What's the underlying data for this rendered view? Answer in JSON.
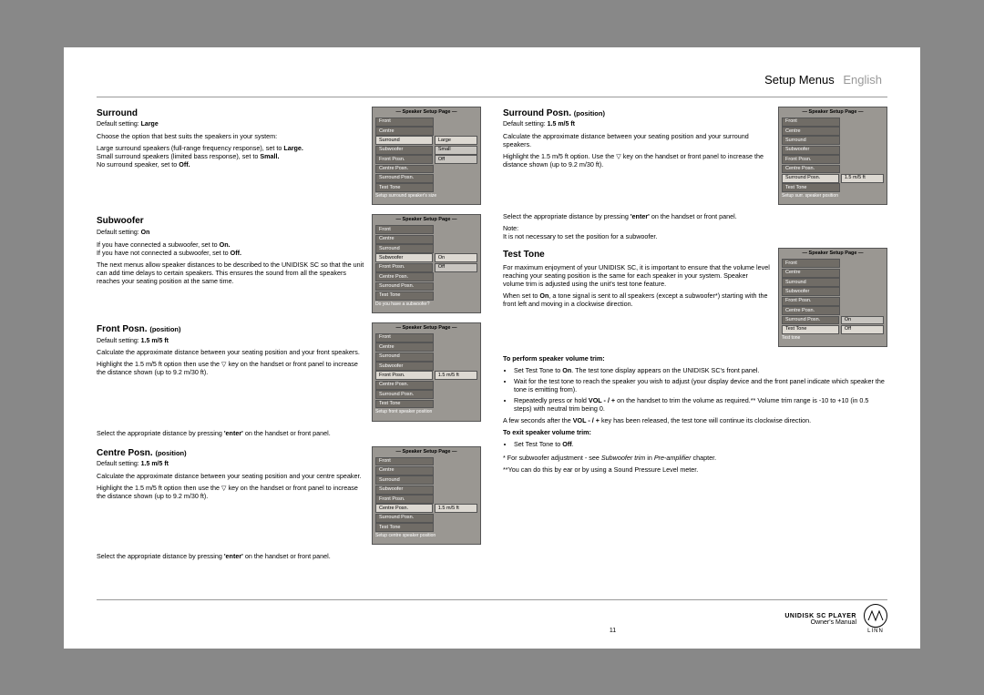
{
  "header": {
    "title": "Setup Menus",
    "lang": "English"
  },
  "left": {
    "surround": {
      "heading": "Surround",
      "default_label": "Default setting:",
      "default_value": "Large",
      "intro": "Choose the option that best suits the speakers in your system:",
      "line1a": "Large surround speakers (full-range frequency response), set to ",
      "line1b": "Large.",
      "line2a": "Small surround speakers (limited bass response), set to ",
      "line2b": "Small.",
      "line3a": "No surround speaker, set to ",
      "line3b": "Off."
    },
    "subwoofer": {
      "heading": "Subwoofer",
      "default_label": "Default setting:",
      "default_value": "On",
      "l1a": "If you have connected a subwoofer, set to ",
      "l1b": "On.",
      "l2a": "If you have not connected a subwoofer, set to ",
      "l2b": "Off.",
      "para": "The next menus allow speaker distances to be described to the UNIDISK SC so that the unit can add time delays to certain speakers. This ensures the sound from all the speakers reaches your seating position at the same time."
    },
    "front": {
      "heading": "Front Posn.",
      "sub": "(position)",
      "default_label": "Default setting:",
      "default_value": "1.5 m/5 ft",
      "p1": "Calculate the approximate distance between your seating position and your front speakers.",
      "p2": "Highlight the 1.5 m/5 ft option then use the  ▽  key on the handset or front panel to increase the distance shown (up to 9.2 m/30 ft).",
      "p3a": "Select the appropriate distance by pressing ",
      "p3b": "'enter'",
      "p3c": " on the handset or front panel."
    },
    "centre": {
      "heading": "Centre Posn.",
      "sub": "(position)",
      "default_label": "Default setting:",
      "default_value": "1.5 m/5 ft",
      "p1": "Calculate the approximate distance between your seating position and your centre speaker.",
      "p2": "Highlight the 1.5 m/5 ft option then use the  ▽  key on the handset or front panel to increase the distance shown (up to 9.2 m/30 ft).",
      "p3a": "Select the appropriate distance by pressing ",
      "p3b": "'enter'",
      "p3c": " on the handset or front panel."
    }
  },
  "right": {
    "srp": {
      "heading": "Surround Posn.",
      "sub": "(position)",
      "default_label": "Default setting:",
      "default_value": "1.5 m/5 ft",
      "p1": "Calculate the approximate distance between your seating position and your surround speakers.",
      "p2": "Highlight the 1.5 m/5 ft option. Use the  ▽  key on the handset or front panel to increase the distance shown (up to 9.2 m/30 ft).",
      "p3a": "Select the appropriate distance by pressing ",
      "p3b": "'enter'",
      "p3c": " on the handset or front panel.",
      "note_label": "Note:",
      "note": "It is not necessary to set the position for a subwoofer."
    },
    "tt": {
      "heading": "Test Tone",
      "p1": "For maximum enjoyment of your UNIDISK SC, it is important to ensure that the volume level reaching your seating position is the same for each speaker in your system. Speaker volume trim is adjusted using the unit's test tone feature.",
      "p2a": "When set to ",
      "p2b": "On",
      "p2c": ", a tone signal is sent to all speakers (except a subwoofer*) starting with the front left and moving in a clockwise direction.",
      "perform": "To perform speaker volume trim:",
      "b1a": "Set Test Tone to ",
      "b1b": "On",
      "b1c": ". The test tone display appears on the UNIDISK SC's front panel.",
      "b2": "Wait for the test tone to reach the speaker you wish to adjust (your display device and the front panel indicate which speaker the tone is emitting from).",
      "b3a": "Repeatedly press or hold ",
      "b3b": "VOL - / +",
      "b3c": " on the handset to trim the volume as required.** Volume trim range is -10 to +10 (in 0.5 steps) with neutral trim being 0.",
      "p3a": "A few seconds after the ",
      "p3b": "VOL - / +",
      "p3c": " key has been released, the test tone will continue its clockwise direction.",
      "exit": "To exit speaker volume trim:",
      "e1a": "Set Test Tone to ",
      "e1b": "Off",
      "e1c": ".",
      "foot1a": "*  For subwoofer adjustment - see ",
      "foot1b": "Subwoofer trim",
      "foot1c": " in ",
      "foot1d": "Pre-amplifier",
      "foot1e": " chapter.",
      "foot2": "**You can do this by ear or by using a Sound Pressure Level meter."
    }
  },
  "menus": {
    "title": "Speaker Setup Page",
    "items": [
      "Front",
      "Centre",
      "Surround",
      "Subwoofer",
      "Front Posn.",
      "Centre Posn.",
      "Surround Posn.",
      "Test Tone"
    ],
    "surround_vals": [
      "",
      "",
      "Large",
      "Small",
      "Off",
      "",
      "",
      ""
    ],
    "surround_help": "Setup surround speaker's size",
    "sub_vals": [
      "",
      "",
      "",
      "On",
      "Off",
      "",
      "",
      ""
    ],
    "sub_help": "Do you have a subwoofer?",
    "front_vals": [
      "",
      "",
      "",
      "",
      "1.5 m/5 ft",
      "",
      "",
      ""
    ],
    "front_help": "Setup front speaker position",
    "centre_vals": [
      "",
      "",
      "",
      "",
      "",
      "1.5 m/5 ft",
      "",
      ""
    ],
    "centre_help": "Setup centre speaker position",
    "srp_vals": [
      "",
      "",
      "",
      "",
      "",
      "",
      "1.5 m/5 ft",
      ""
    ],
    "srp_help": "Setup surr. speaker position",
    "tt_vals": [
      "",
      "",
      "",
      "",
      "",
      "",
      "On",
      "Off"
    ],
    "tt_help": "Test tone"
  },
  "footer": {
    "page": "11",
    "product": "UNIDISK SC PLAYER",
    "manual": "Owner's Manual",
    "brand": "LINN"
  }
}
